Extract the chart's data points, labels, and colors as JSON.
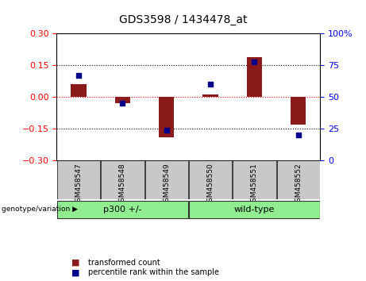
{
  "title": "GDS3598 / 1434478_at",
  "categories": [
    "GSM458547",
    "GSM458548",
    "GSM458549",
    "GSM458550",
    "GSM458551",
    "GSM458552"
  ],
  "red_values": [
    0.06,
    -0.03,
    -0.19,
    0.01,
    0.19,
    -0.13
  ],
  "blue_values": [
    67,
    45,
    24,
    60,
    78,
    20
  ],
  "ylim_left": [
    -0.3,
    0.3
  ],
  "ylim_right": [
    0,
    100
  ],
  "yticks_left": [
    -0.3,
    -0.15,
    0,
    0.15,
    0.3
  ],
  "yticks_right": [
    0,
    25,
    50,
    75,
    100
  ],
  "red_color": "#8B1A1A",
  "blue_color": "#00008B",
  "group1_label": "p300 +/-",
  "group1_indices": [
    0,
    1,
    2
  ],
  "group2_label": "wild-type",
  "group2_indices": [
    3,
    4,
    5
  ],
  "group_color": "#90EE90",
  "sample_box_color": "#C8C8C8",
  "group_label_text": "genotype/variation",
  "legend_red": "transformed count",
  "legend_blue": "percentile rank within the sample",
  "bar_width": 0.35,
  "background_color": "#ffffff"
}
